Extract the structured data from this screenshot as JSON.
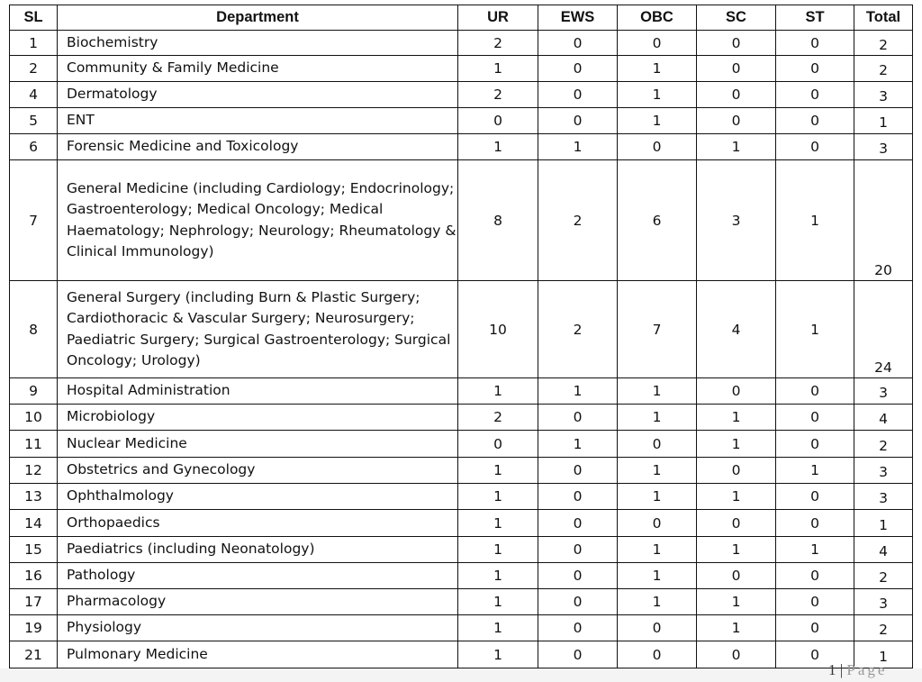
{
  "table": {
    "headers": [
      "SL",
      "Department",
      "UR",
      "EWS",
      "OBC",
      "SC",
      "ST",
      "Total"
    ],
    "rows": [
      {
        "sl": "1",
        "dept": "Biochemistry",
        "ur": "2",
        "ews": "0",
        "obc": "0",
        "sc": "0",
        "st": "0",
        "total": "2"
      },
      {
        "sl": "2",
        "dept": "Community & Family Medicine",
        "ur": "1",
        "ews": "0",
        "obc": "1",
        "sc": "0",
        "st": "0",
        "total": "2"
      },
      {
        "sl": "4",
        "dept": "Dermatology",
        "ur": "2",
        "ews": "0",
        "obc": "1",
        "sc": "0",
        "st": "0",
        "total": "3"
      },
      {
        "sl": "5",
        "dept": "ENT",
        "ur": "0",
        "ews": "0",
        "obc": "1",
        "sc": "0",
        "st": "0",
        "total": "1"
      },
      {
        "sl": "6",
        "dept": "Forensic Medicine and Toxicology",
        "ur": "1",
        "ews": "1",
        "obc": "0",
        "sc": "1",
        "st": "0",
        "total": "3"
      },
      {
        "sl": "7",
        "dept": "General Medicine (including Cardiology; Endocrinology; Gastroenterology; Medical Oncology; Medical Haematology; Nephrology; Neurology; Rheumatology & Clinical Immunology)",
        "ur": "8",
        "ews": "2",
        "obc": "6",
        "sc": "3",
        "st": "1",
        "total": "20"
      },
      {
        "sl": "8",
        "dept": "General Surgery (including Burn & Plastic Surgery; Cardiothoracic & Vascular Surgery; Neurosurgery; Paediatric Surgery; Surgical Gastroenterology; Surgical Oncology; Urology)",
        "ur": "10",
        "ews": "2",
        "obc": "7",
        "sc": "4",
        "st": "1",
        "total": "24"
      },
      {
        "sl": "9",
        "dept": "Hospital Administration",
        "ur": "1",
        "ews": "1",
        "obc": "1",
        "sc": "0",
        "st": "0",
        "total": "3"
      },
      {
        "sl": "10",
        "dept": "Microbiology",
        "ur": "2",
        "ews": "0",
        "obc": "1",
        "sc": "1",
        "st": "0",
        "total": "4"
      },
      {
        "sl": "11",
        "dept": "Nuclear Medicine",
        "ur": "0",
        "ews": "1",
        "obc": "0",
        "sc": "1",
        "st": "0",
        "total": "2"
      },
      {
        "sl": "12",
        "dept": "Obstetrics and Gynecology",
        "ur": "1",
        "ews": "0",
        "obc": "1",
        "sc": "0",
        "st": "1",
        "total": "3"
      },
      {
        "sl": "13",
        "dept": "Ophthalmology",
        "ur": "1",
        "ews": "0",
        "obc": "1",
        "sc": "1",
        "st": "0",
        "total": "3"
      },
      {
        "sl": "14",
        "dept": "Orthopaedics",
        "ur": "1",
        "ews": "0",
        "obc": "0",
        "sc": "0",
        "st": "0",
        "total": "1"
      },
      {
        "sl": "15",
        "dept": "Paediatrics (including Neonatology)",
        "ur": "1",
        "ews": "0",
        "obc": "1",
        "sc": "1",
        "st": "1",
        "total": "4"
      },
      {
        "sl": "16",
        "dept": "Pathology",
        "ur": "1",
        "ews": "0",
        "obc": "1",
        "sc": "0",
        "st": "0",
        "total": "2"
      },
      {
        "sl": "17",
        "dept": "Pharmacology",
        "ur": "1",
        "ews": "0",
        "obc": "1",
        "sc": "1",
        "st": "0",
        "total": "3"
      },
      {
        "sl": "19",
        "dept": "Physiology",
        "ur": "1",
        "ews": "0",
        "obc": "0",
        "sc": "1",
        "st": "0",
        "total": "2"
      },
      {
        "sl": "21",
        "dept": "Pulmonary Medicine",
        "ur": "1",
        "ews": "0",
        "obc": "0",
        "sc": "0",
        "st": "0",
        "total": "1"
      }
    ]
  },
  "footer": {
    "page_number": "1",
    "separator": "|",
    "page_label": "Page"
  }
}
